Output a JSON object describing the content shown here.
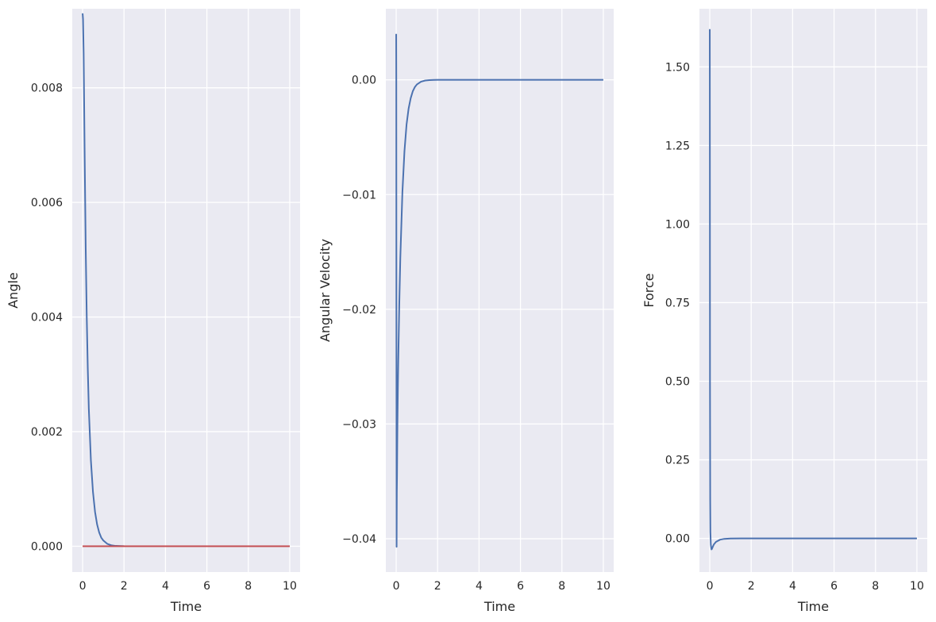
{
  "colors": {
    "plot_background": "#eaeaf2",
    "grid": "#ffffff",
    "series_blue": "#4c72b0",
    "series_red": "#c44e52",
    "text": "#262626"
  },
  "chart_data": [
    {
      "type": "line",
      "title": "",
      "xlabel": "Time",
      "ylabel": "Angle",
      "xlim": [
        -0.5,
        10.5
      ],
      "ylim": [
        -0.00045,
        0.00938
      ],
      "xticks": [
        0,
        2,
        4,
        6,
        8,
        10
      ],
      "xtick_labels": [
        "0",
        "2",
        "4",
        "6",
        "8",
        "10"
      ],
      "yticks": [
        0.0,
        0.002,
        0.004,
        0.006,
        0.008
      ],
      "ytick_labels": [
        "0.000",
        "0.002",
        "0.004",
        "0.006",
        "0.008"
      ],
      "grid": true,
      "series": [
        {
          "color": "#4c72b0",
          "x": [
            0,
            0.02,
            0.05,
            0.1,
            0.15,
            0.2,
            0.25,
            0.3,
            0.4,
            0.5,
            0.6,
            0.7,
            0.8,
            0.9,
            1.0,
            1.2,
            1.4,
            1.6,
            2.0,
            3.0,
            5.0,
            10.0
          ],
          "y": [
            0.0093,
            0.0092,
            0.0086,
            0.0068,
            0.0052,
            0.004,
            0.0031,
            0.0024,
            0.0015,
            0.00095,
            0.0006,
            0.00038,
            0.00024,
            0.00015,
            0.0001,
            4e-05,
            1.5e-05,
            6e-06,
            1e-06,
            0.0,
            0.0,
            0.0
          ]
        },
        {
          "color": "#c44e52",
          "x": [
            0,
            10
          ],
          "y": [
            0,
            0
          ]
        }
      ]
    },
    {
      "type": "line",
      "title": "",
      "xlabel": "Time",
      "ylabel": "Angular Velocity",
      "xlim": [
        -0.5,
        10.5
      ],
      "ylim": [
        -0.0429,
        0.0062
      ],
      "xticks": [
        0,
        2,
        4,
        6,
        8,
        10
      ],
      "xtick_labels": [
        "0",
        "2",
        "4",
        "6",
        "8",
        "10"
      ],
      "yticks": [
        0.0,
        -0.01,
        -0.02,
        -0.03,
        -0.04
      ],
      "ytick_labels": [
        "0.00",
        "−0.01",
        "−0.02",
        "−0.03",
        "−0.04"
      ],
      "grid": true,
      "series": [
        {
          "color": "#4c72b0",
          "x": [
            0,
            0.005,
            0.01,
            0.02,
            0.03,
            0.04,
            0.05,
            0.06,
            0.08,
            0.1,
            0.15,
            0.2,
            0.3,
            0.4,
            0.5,
            0.6,
            0.7,
            0.8,
            0.9,
            1.0,
            1.2,
            1.4,
            1.6,
            1.8,
            2.0,
            3.0,
            5.0,
            10.0
          ],
          "y": [
            0.004,
            0.0,
            -0.02,
            -0.0407,
            -0.036,
            -0.0345,
            -0.032,
            -0.03,
            -0.027,
            -0.0245,
            -0.0195,
            -0.0155,
            -0.0098,
            -0.0062,
            -0.0039,
            -0.0025,
            -0.0016,
            -0.001,
            -0.00063,
            -0.0004,
            -0.00016,
            -6e-05,
            -2.5e-05,
            -1e-05,
            0.0,
            0.0,
            0.0,
            0.0
          ]
        }
      ]
    },
    {
      "type": "line",
      "title": "",
      "xlabel": "Time",
      "ylabel": "Force",
      "xlim": [
        -0.5,
        10.5
      ],
      "ylim": [
        -0.107,
        1.685
      ],
      "xticks": [
        0,
        2,
        4,
        6,
        8,
        10
      ],
      "xtick_labels": [
        "0",
        "2",
        "4",
        "6",
        "8",
        "10"
      ],
      "yticks": [
        0.0,
        0.25,
        0.5,
        0.75,
        1.0,
        1.25,
        1.5
      ],
      "ytick_labels": [
        "0.00",
        "0.25",
        "0.50",
        "0.75",
        "1.00",
        "1.25",
        "1.50"
      ],
      "grid": true,
      "series": [
        {
          "color": "#4c72b0",
          "x": [
            0,
            0.005,
            0.01,
            0.02,
            0.03,
            0.05,
            0.08,
            0.1,
            0.15,
            0.2,
            0.3,
            0.5,
            0.7,
            1.0,
            1.5,
            2.0,
            5.0,
            10.0
          ],
          "y": [
            1.62,
            1.2,
            0.5,
            0.12,
            0.02,
            -0.02,
            -0.035,
            -0.034,
            -0.026,
            -0.019,
            -0.011,
            -0.004,
            -0.0015,
            -0.0005,
            0.0,
            0.0,
            0.0,
            0.0
          ]
        }
      ]
    }
  ]
}
